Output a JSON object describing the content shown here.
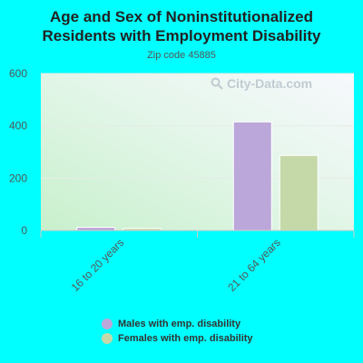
{
  "chart_data": {
    "type": "bar",
    "title_line1": "Age and Sex of Noninstitutionalized",
    "title_line2": "Residents with Employment Disability",
    "subtitle": "Zip code 45885",
    "categories": [
      "16 to 20 years",
      "21 to 64 years"
    ],
    "series": [
      {
        "name": "Males with emp. disability",
        "values": [
          12,
          415
        ],
        "color": "#bba7d9"
      },
      {
        "name": "Females with emp. disability",
        "values": [
          8,
          287
        ],
        "color": "#c4d9a7"
      }
    ],
    "y_ticks": [
      0,
      200,
      400,
      600
    ],
    "ylim": [
      0,
      600
    ],
    "grid": true,
    "legend_position": "bottom"
  },
  "watermark": {
    "text": "City-Data.com",
    "icon": "magnifier-icon"
  }
}
